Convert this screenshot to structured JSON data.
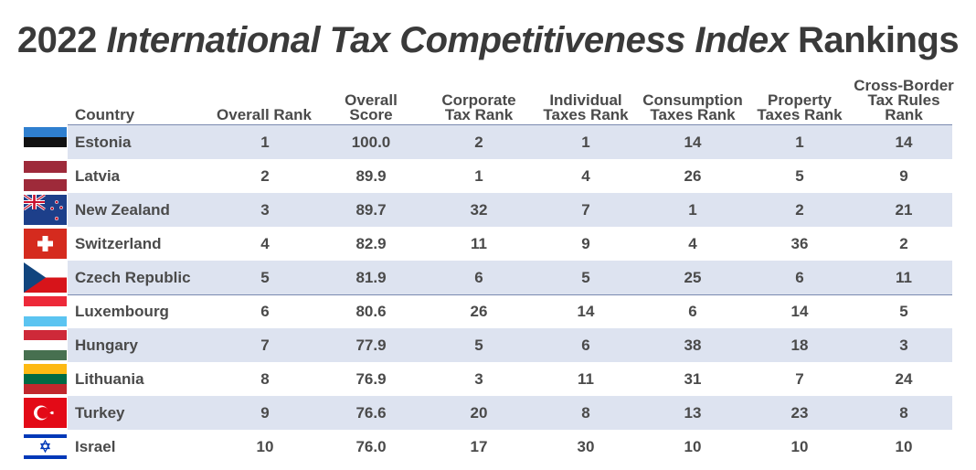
{
  "title": {
    "prefix": "2022 ",
    "italic": "International Tax Competitiveness Index",
    "suffix": " Rankings"
  },
  "chart_data": {
    "type": "table",
    "columns": [
      "Country",
      "Overall Rank",
      "Overall\nScore",
      "Corporate\nTax Rank",
      "Individual\nTaxes Rank",
      "Consumption\nTaxes Rank",
      "Property\nTaxes Rank",
      "Cross-Border\nTax Rules\nRank"
    ],
    "rows": [
      {
        "country": "Estonia",
        "flag": "estonia-flag",
        "values": [
          "1",
          "100.0",
          "2",
          "1",
          "14",
          "1",
          "14"
        ]
      },
      {
        "country": "Latvia",
        "flag": "latvia-flag",
        "values": [
          "2",
          "89.9",
          "1",
          "4",
          "26",
          "5",
          "9"
        ]
      },
      {
        "country": "New Zealand",
        "flag": "new-zealand-flag",
        "values": [
          "3",
          "89.7",
          "32",
          "7",
          "1",
          "2",
          "21"
        ]
      },
      {
        "country": "Switzerland",
        "flag": "switzerland-flag",
        "values": [
          "4",
          "82.9",
          "11",
          "9",
          "4",
          "36",
          "2"
        ]
      },
      {
        "country": "Czech Republic",
        "flag": "czech-republic-flag",
        "values": [
          "5",
          "81.9",
          "6",
          "5",
          "25",
          "6",
          "11"
        ]
      },
      {
        "country": "Luxembourg",
        "flag": "luxembourg-flag",
        "values": [
          "6",
          "80.6",
          "26",
          "14",
          "6",
          "14",
          "5"
        ]
      },
      {
        "country": "Hungary",
        "flag": "hungary-flag",
        "values": [
          "7",
          "77.9",
          "5",
          "6",
          "38",
          "18",
          "3"
        ]
      },
      {
        "country": "Lithuania",
        "flag": "lithuania-flag",
        "values": [
          "8",
          "76.9",
          "3",
          "11",
          "31",
          "7",
          "24"
        ]
      },
      {
        "country": "Turkey",
        "flag": "turkey-flag",
        "values": [
          "9",
          "76.6",
          "20",
          "8",
          "13",
          "23",
          "8"
        ]
      },
      {
        "country": "Israel",
        "flag": "israel-flag",
        "values": [
          "10",
          "76.0",
          "17",
          "30",
          "10",
          "10",
          "10"
        ]
      }
    ],
    "colors": {
      "row_shade": "#dde3f0",
      "rule": "#7a8ab0",
      "text": "#4a4a4a"
    }
  }
}
